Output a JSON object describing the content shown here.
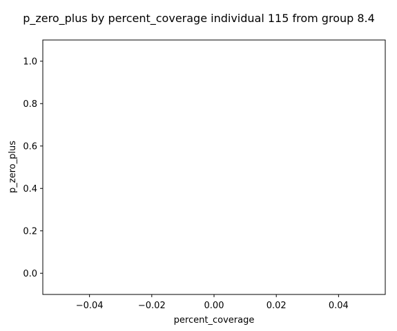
{
  "chart_data": {
    "type": "line",
    "title": "p_zero_plus by percent_coverage individual 115 from group 8.4",
    "xlabel": "percent_coverage",
    "ylabel": "p_zero_plus",
    "xlim": [
      -0.055,
      0.055
    ],
    "ylim": [
      -0.1,
      1.1
    ],
    "xticks": [
      -0.04,
      -0.02,
      0.0,
      0.02,
      0.04
    ],
    "xtick_labels": [
      "−0.04",
      "−0.02",
      "0.00",
      "0.02",
      "0.04"
    ],
    "yticks": [
      0.0,
      0.2,
      0.4,
      0.6,
      0.8,
      1.0
    ],
    "ytick_labels": [
      "0.0",
      "0.2",
      "0.4",
      "0.6",
      "0.8",
      "1.0"
    ],
    "series": [],
    "grid": false,
    "legend": "none"
  },
  "colors": {
    "background": "#ffffff",
    "axes": "#000000",
    "text": "#000000"
  }
}
